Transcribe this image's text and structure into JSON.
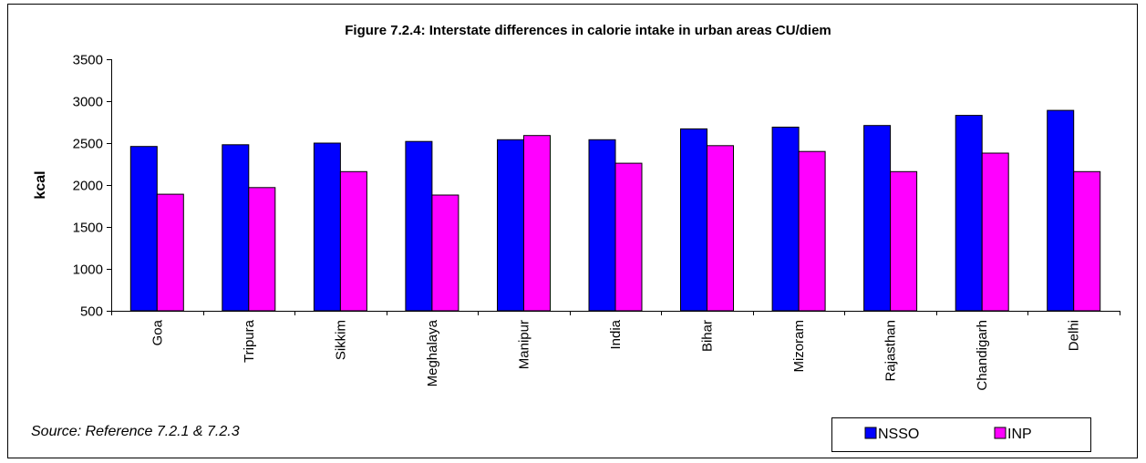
{
  "chart_data": {
    "type": "bar",
    "title": "Figure 7.2.4: Interstate differences in calorie intake in urban areas CU/diem",
    "xlabel": "",
    "ylabel": "kcal",
    "ylim": [
      500,
      3500
    ],
    "yticks": [
      500,
      1000,
      1500,
      2000,
      2500,
      3000,
      3500
    ],
    "grid": false,
    "legend_position": "bottom-right",
    "categories": [
      "Goa",
      "Tripura",
      "Sikkim",
      "Meghalaya",
      "Manipur",
      "India",
      "Bihar",
      "Mizoram",
      "Rajasthan",
      "Chandigarh",
      "Delhi"
    ],
    "series": [
      {
        "name": "NSSO",
        "color": "#0000FF",
        "values": [
          2460,
          2480,
          2500,
          2520,
          2540,
          2540,
          2670,
          2690,
          2710,
          2830,
          2890
        ]
      },
      {
        "name": "INP",
        "color": "#FF00FF",
        "values": [
          1890,
          1970,
          2160,
          1880,
          2590,
          2260,
          2470,
          2400,
          2160,
          2380,
          2160
        ]
      }
    ]
  },
  "source_note": "Source: Reference 7.2.1 & 7.2.3"
}
